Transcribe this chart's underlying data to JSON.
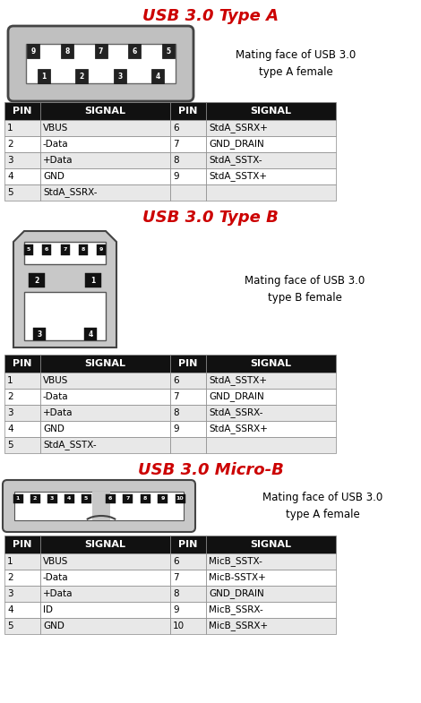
{
  "title_color": "#cc0000",
  "bg_color": "#ffffff",
  "table_header_bg": "#111111",
  "table_header_fg": "#ffffff",
  "table_row_bg1": "#e8e8e8",
  "table_row_bg2": "#ffffff",
  "table_border_color": "#888888",
  "sections": [
    {
      "title": "USB 3.0 Type A",
      "label_text": "Mating face of USB 3.0\ntype A female",
      "pins_left": [
        [
          "1",
          "VBUS"
        ],
        [
          "2",
          "-Data"
        ],
        [
          "3",
          "+Data"
        ],
        [
          "4",
          "GND"
        ],
        [
          "5",
          "StdA_SSRX-"
        ]
      ],
      "pins_right": [
        [
          "6",
          "StdA_SSRX+"
        ],
        [
          "7",
          "GND_DRAIN"
        ],
        [
          "8",
          "StdA_SSTX-"
        ],
        [
          "9",
          "StdA_SSTX+"
        ],
        [
          "",
          ""
        ]
      ]
    },
    {
      "title": "USB 3.0 Type B",
      "label_text": "Mating face of USB 3.0\ntype B female",
      "pins_left": [
        [
          "1",
          "VBUS"
        ],
        [
          "2",
          "-Data"
        ],
        [
          "3",
          "+Data"
        ],
        [
          "4",
          "GND"
        ],
        [
          "5",
          "StdA_SSTX-"
        ]
      ],
      "pins_right": [
        [
          "6",
          "StdA_SSTX+"
        ],
        [
          "7",
          "GND_DRAIN"
        ],
        [
          "8",
          "StdA_SSRX-"
        ],
        [
          "9",
          "StdA_SSRX+"
        ],
        [
          "",
          ""
        ]
      ]
    },
    {
      "title": "USB 3.0 Micro-B",
      "label_text": "Mating face of USB 3.0\ntype A female",
      "pins_left": [
        [
          "1",
          "VBUS"
        ],
        [
          "2",
          "-Data"
        ],
        [
          "3",
          "+Data"
        ],
        [
          "4",
          "ID"
        ],
        [
          "5",
          "GND"
        ]
      ],
      "pins_right": [
        [
          "6",
          "MicB_SSTX-"
        ],
        [
          "7",
          "MicB-SSTX+"
        ],
        [
          "8",
          "GND_DRAIN"
        ],
        [
          "9",
          "MicB_SSRX-"
        ],
        [
          "10",
          "MicB_SSRX+"
        ]
      ]
    }
  ]
}
